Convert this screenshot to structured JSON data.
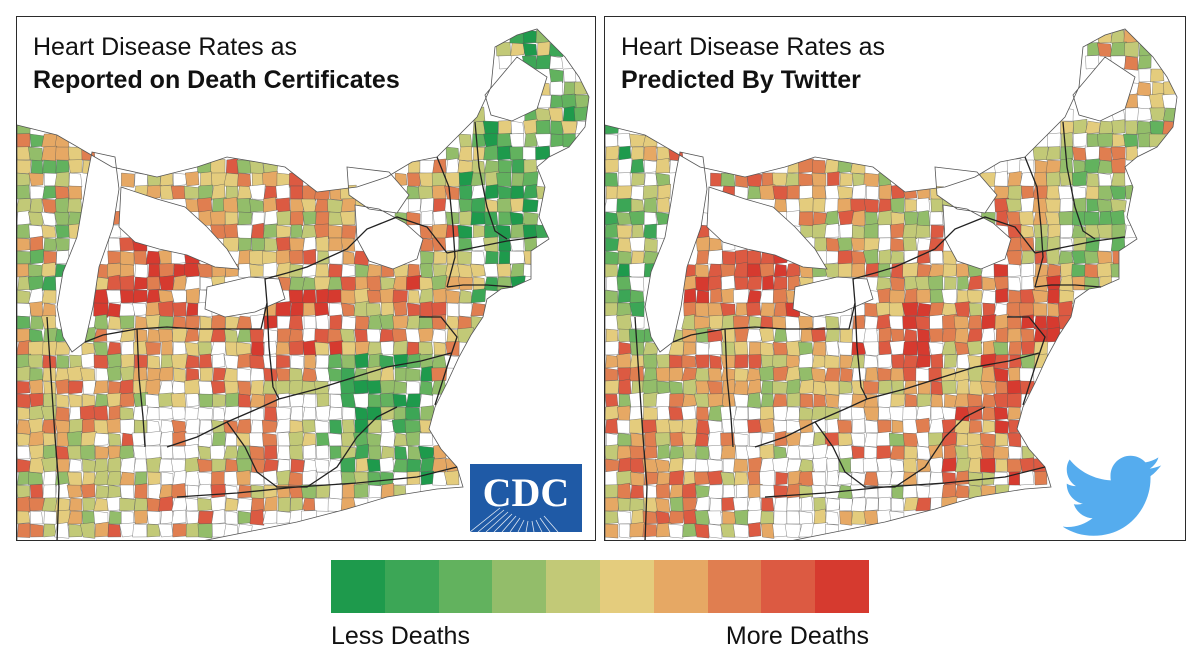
{
  "panels": {
    "left": {
      "title_line1": "Heart Disease Rates as",
      "title_line2": "Reported on Death Certificates",
      "logo": "cdc-logo",
      "logo_text": "CDC",
      "seed": 11
    },
    "right": {
      "title_line1": "Heart Disease Rates as",
      "title_line2": "Predicted By Twitter",
      "logo": "twitter-bird-icon",
      "seed": 37
    }
  },
  "legend": {
    "less_label": "Less Deaths",
    "more_label": "More Deaths",
    "colors": [
      "#1e9a4c",
      "#3ca656",
      "#62b25e",
      "#93bd6a",
      "#c2c977",
      "#e4cc7d",
      "#e6a864",
      "#e07e50",
      "#dc5a42",
      "#d63a2f"
    ]
  },
  "colors": {
    "border": "#2b2b2b",
    "state_line": "#222222",
    "county_line": "#555555",
    "no_data": "#ffffff",
    "cdc_blue": "#1f5aa6",
    "twitter_blue": "#55acee"
  }
}
